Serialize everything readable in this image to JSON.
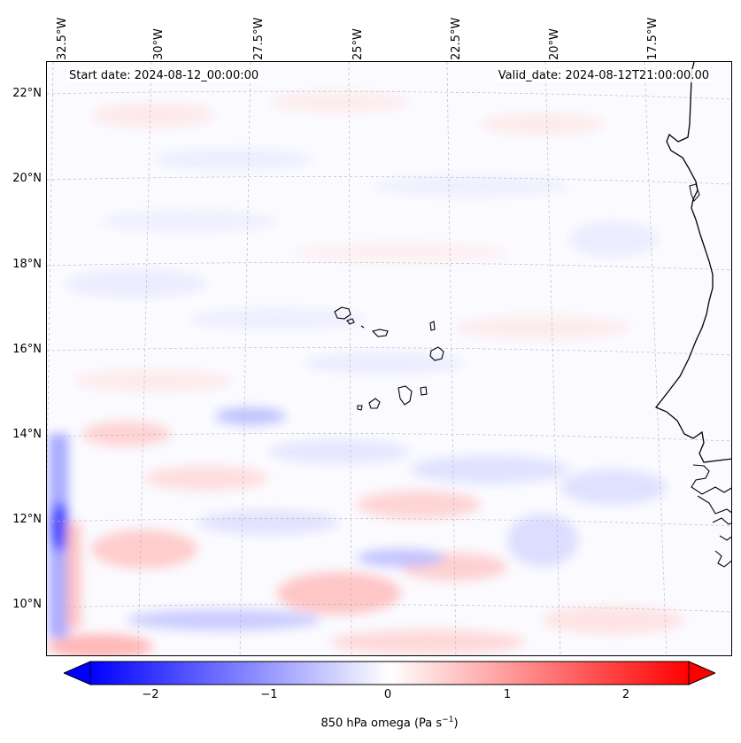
{
  "header": {
    "start_date": "Start date: 2024-08-12_00:00:00",
    "valid_date": "Valid_date: 2024-08-12T21:00:00.00"
  },
  "map": {
    "longitude_labels": [
      "32.5°W",
      "30°W",
      "27.5°W",
      "25°W",
      "22.5°W",
      "20°W",
      "17.5°W"
    ],
    "latitude_labels": [
      "22°N",
      "20°N",
      "18°N",
      "16°N",
      "14°N",
      "12°N",
      "10°N"
    ],
    "extent": {
      "lon_min": -32.5,
      "lon_max": -15.8,
      "lat_min": 8.9,
      "lat_max": 22.7
    },
    "field": "850 hPa omega",
    "colormap": "bwr",
    "colors": {
      "negative": "#0000ff",
      "neutral": "#ffffff",
      "positive": "#ff0000",
      "coast": "#000000"
    }
  },
  "colorbar": {
    "ticks": [
      "−2",
      "−1",
      "0",
      "1",
      "2"
    ],
    "tick_values": [
      -2,
      -1,
      0,
      1,
      2
    ],
    "range": [
      -2.6,
      2.6
    ],
    "label_prefix": "850 hPa omega (Pa s",
    "label_exp": "−1",
    "label_suffix": ")",
    "extend": "both"
  }
}
